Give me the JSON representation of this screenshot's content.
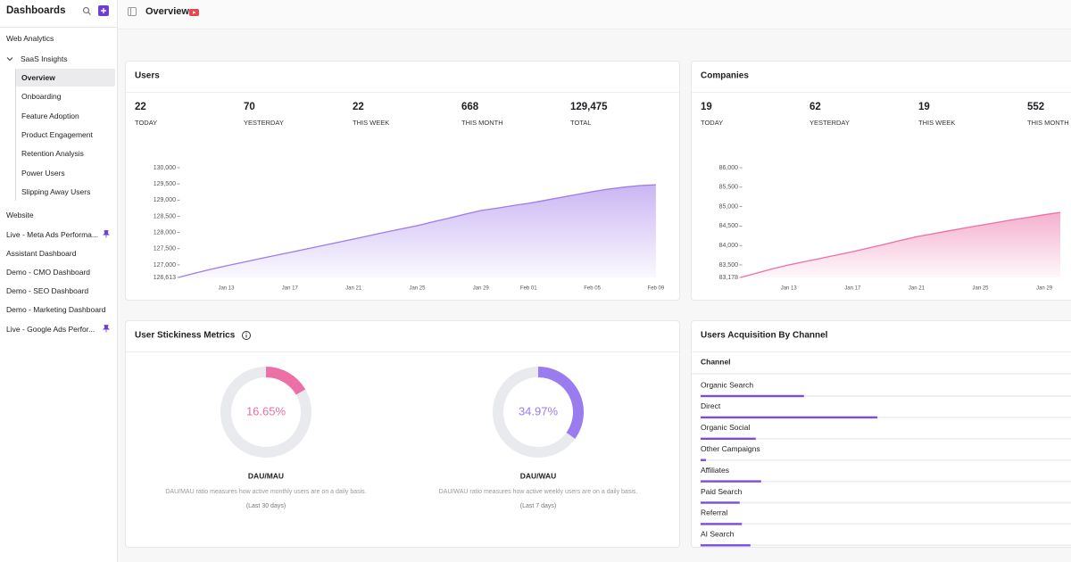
{
  "sidebar": {
    "title": "Dashboards",
    "items": [
      {
        "label": "Web Analytics"
      },
      {
        "label": "SaaS Insights",
        "expanded": true
      },
      {
        "label": "Overview",
        "child": true,
        "active": true
      },
      {
        "label": "Onboarding",
        "child": true
      },
      {
        "label": "Feature Adoption",
        "child": true
      },
      {
        "label": "Product Engagement",
        "child": true
      },
      {
        "label": "Retention Analysis",
        "child": true
      },
      {
        "label": "Power Users",
        "child": true
      },
      {
        "label": "Slipping Away Users",
        "child": true
      },
      {
        "label": "Website"
      },
      {
        "label": "Live - Meta Ads Performa...",
        "pinned": true
      },
      {
        "label": "Assistant Dashboard"
      },
      {
        "label": "Demo - CMO Dashboard"
      },
      {
        "label": "Demo - SEO Dashboard"
      },
      {
        "label": "Demo - Marketing Dashboard"
      },
      {
        "label": "Live - Google Ads Perfor...",
        "pinned": true
      }
    ]
  },
  "header": {
    "title": "Overview"
  },
  "chart_data": [
    {
      "type": "area",
      "title": "Users",
      "stats": [
        {
          "value": "22",
          "label": "TODAY"
        },
        {
          "value": "70",
          "label": "YESTERDAY"
        },
        {
          "value": "22",
          "label": "THIS WEEK"
        },
        {
          "value": "668",
          "label": "THIS MONTH"
        },
        {
          "value": "129,475",
          "label": "TOTAL"
        }
      ],
      "categories": [
        null,
        null,
        null,
        "Jan 13",
        null,
        null,
        null,
        "Jan 17",
        null,
        null,
        null,
        "Jan 21",
        null,
        null,
        null,
        "Jan 25",
        null,
        null,
        null,
        "Jan 29",
        null,
        null,
        "Feb 01",
        null,
        null,
        null,
        "Feb 05",
        null,
        null,
        null,
        "Feb 09"
      ],
      "values": [
        126613,
        126740,
        126860,
        126971,
        127075,
        127180,
        127285,
        127384,
        127490,
        127590,
        127695,
        127798,
        127905,
        128010,
        128110,
        128211,
        128330,
        128445,
        128565,
        128679,
        128750,
        128830,
        128900,
        128990,
        129080,
        129170,
        129258,
        129340,
        129400,
        129450,
        129475
      ],
      "color": "#9f7aea",
      "ylim": [
        126613,
        130000
      ],
      "yticks": [
        {
          "value": 126613,
          "label": "126,613"
        },
        {
          "value": 127000,
          "label": "127,000"
        },
        {
          "value": 127500,
          "label": "127,500"
        },
        {
          "value": 128000,
          "label": "128,000"
        },
        {
          "value": 128500,
          "label": "128,500"
        },
        {
          "value": 129000,
          "label": "129,000"
        },
        {
          "value": 129500,
          "label": "129,500"
        },
        {
          "value": 130000,
          "label": "130,000"
        }
      ]
    },
    {
      "type": "area",
      "title": "Companies",
      "stats": [
        {
          "value": "19",
          "label": "TODAY"
        },
        {
          "value": "62",
          "label": "YESTERDAY"
        },
        {
          "value": "19",
          "label": "THIS WEEK"
        },
        {
          "value": "552",
          "label": "THIS MONTH"
        }
      ],
      "categories": [
        null,
        null,
        null,
        "Jan 13",
        null,
        null,
        null,
        "Jan 17",
        null,
        null,
        null,
        "Jan 21",
        null,
        null,
        null,
        "Jan 25",
        null,
        null,
        null,
        "Jan 29",
        null
      ],
      "values": [
        83178,
        83290,
        83400,
        83500,
        83585,
        83670,
        83755,
        83840,
        83935,
        84030,
        84130,
        84225,
        84300,
        84375,
        84450,
        84520,
        84590,
        84660,
        84725,
        84790,
        84850
      ],
      "color": "#ec6fa6",
      "ylim": [
        83178,
        86000
      ],
      "yticks": [
        {
          "value": 83178,
          "label": "83,178"
        },
        {
          "value": 83500,
          "label": "83,500"
        },
        {
          "value": 84000,
          "label": "84,000"
        },
        {
          "value": 84500,
          "label": "84,500"
        },
        {
          "value": 85000,
          "label": "85,000"
        },
        {
          "value": 85500,
          "label": "85,500"
        },
        {
          "value": 86000,
          "label": "86,000"
        }
      ]
    },
    {
      "type": "donut",
      "title": "User Stickiness Metrics",
      "series": [
        {
          "name": "DAU/MAU",
          "color": "#ec6fa6",
          "values": [
            16.65
          ],
          "value_labels": [
            "16.65%"
          ],
          "description": "DAU/MAU ratio measures how active monthly users are on a daily basis.",
          "note": "(Last 30 days)"
        },
        {
          "name": "DAU/WAU",
          "color": "#9b7cf0",
          "values": [
            34.97
          ],
          "value_labels": [
            "34.97%"
          ],
          "description": "DAU/WAU ratio measures how active weekly users are on a daily basis.",
          "note": "(Last 7 days)"
        }
      ]
    },
    {
      "type": "hbar",
      "title": "Users Acquisition By Channel",
      "column": "Channel",
      "categories": [
        "Organic Search",
        "Direct",
        "Organic Social",
        "Other Campaigns",
        "Affiliates",
        "Paid Search",
        "Referral",
        "AI Search"
      ],
      "values": [
        19.3,
        33,
        10.3,
        1,
        11.3,
        7.3,
        7.7,
        9.3
      ],
      "xlim": [
        0,
        100
      ],
      "color": "#7c4ddb"
    }
  ]
}
